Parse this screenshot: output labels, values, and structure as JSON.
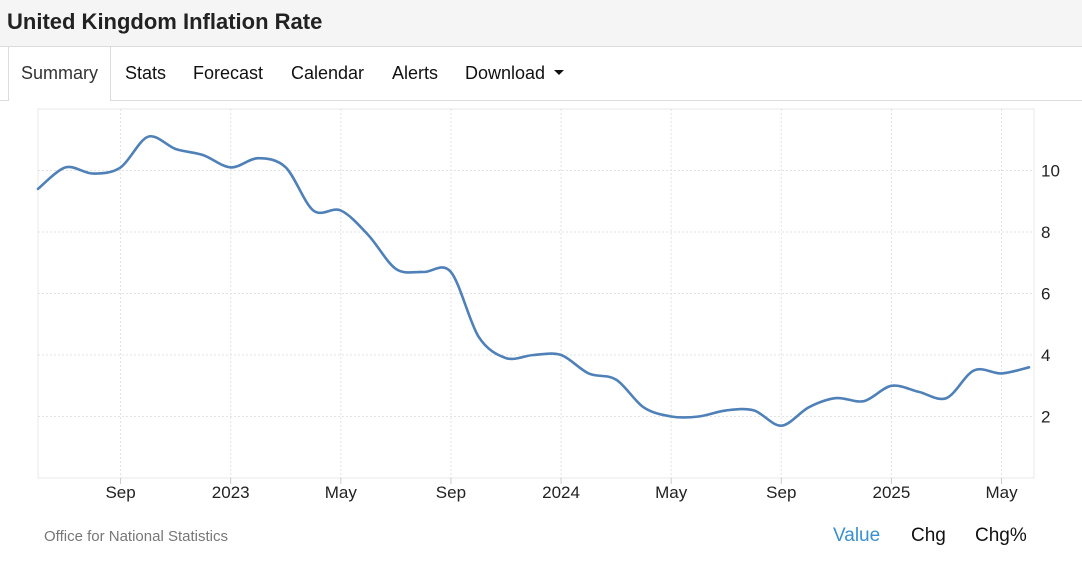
{
  "header": {
    "title": "United Kingdom Inflation Rate"
  },
  "tabs": [
    {
      "label": "Summary",
      "active": true
    },
    {
      "label": "Stats"
    },
    {
      "label": "Forecast"
    },
    {
      "label": "Calendar"
    },
    {
      "label": "Alerts"
    },
    {
      "label": "Download",
      "icon": "caret-down-icon"
    }
  ],
  "footer": {
    "source": "Office for National Statistics",
    "buttons": [
      "Value",
      "Chg",
      "Chg%"
    ],
    "active_button": "Value"
  },
  "colors": {
    "line": "#4f81b8",
    "active_button": "#3a8fd0",
    "grid": "#e3e3e3"
  },
  "chart_data": {
    "type": "line",
    "x_tick_labels": [
      "Sep",
      "2023",
      "May",
      "Sep",
      "2024",
      "May",
      "Sep",
      "2025",
      "May"
    ],
    "y_ticks": [
      2,
      4,
      6,
      8,
      10
    ],
    "ylim": [
      0,
      12
    ],
    "grid": true,
    "series": [
      {
        "x": [
          "2022-06",
          "2022-07",
          "2022-08",
          "2022-09",
          "2022-10",
          "2022-11",
          "2022-12",
          "2023-01",
          "2023-02",
          "2023-03",
          "2023-04",
          "2023-05",
          "2023-06",
          "2023-07",
          "2023-08",
          "2023-09",
          "2023-10",
          "2023-11",
          "2023-12",
          "2024-01",
          "2024-02",
          "2024-03",
          "2024-04",
          "2024-05",
          "2024-06",
          "2024-07",
          "2024-08",
          "2024-09",
          "2024-10",
          "2024-11",
          "2024-12",
          "2025-01",
          "2025-02",
          "2025-03",
          "2025-04",
          "2025-05",
          "2025-06"
        ],
        "values": [
          9.4,
          10.1,
          9.9,
          10.1,
          11.1,
          10.7,
          10.5,
          10.1,
          10.4,
          10.1,
          8.7,
          8.7,
          7.9,
          6.8,
          6.7,
          6.7,
          4.6,
          3.9,
          4.0,
          4.0,
          3.4,
          3.2,
          2.3,
          2.0,
          2.0,
          2.2,
          2.2,
          1.7,
          2.3,
          2.6,
          2.5,
          3.0,
          2.8,
          2.6,
          3.5,
          3.4,
          3.6
        ]
      }
    ]
  }
}
